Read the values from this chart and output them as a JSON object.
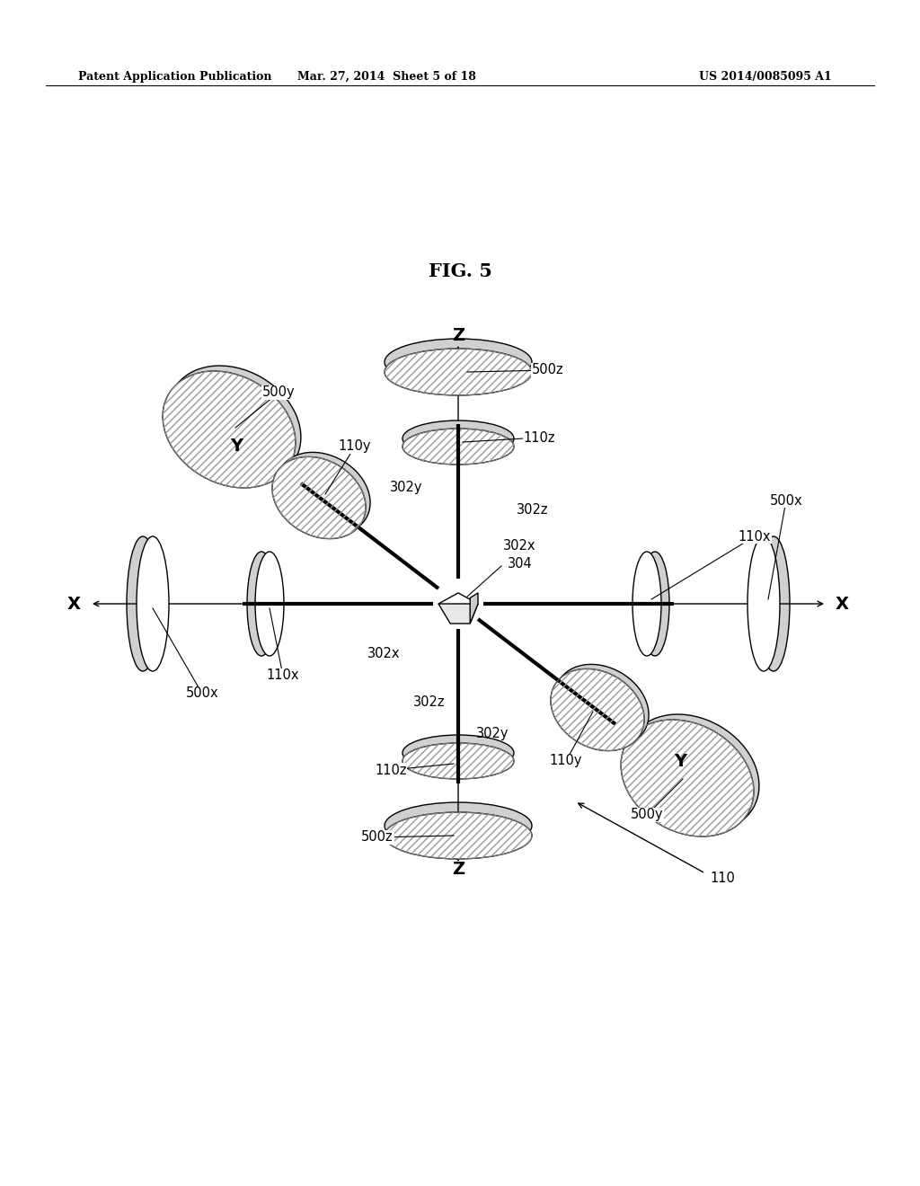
{
  "title_left": "Patent Application Publication",
  "title_mid": "Mar. 27, 2014  Sheet 5 of 18",
  "title_right": "US 2014/0085095 A1",
  "fig_label": "FIG. 5",
  "background": "#ffffff"
}
